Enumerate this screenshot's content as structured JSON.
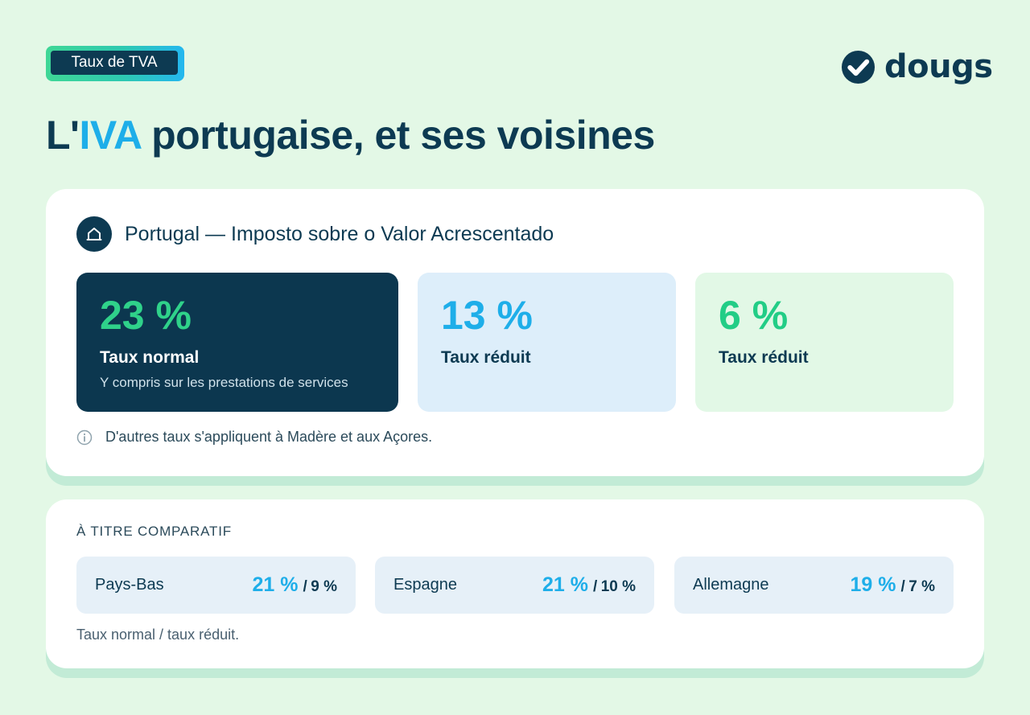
{
  "header": {
    "tag_label": "Taux de TVA",
    "brand_name": "dougs",
    "title": {
      "prefix": "L'",
      "accent": "IVA",
      "suffix": " portugaise, et ses voisines"
    }
  },
  "main_card": {
    "country_icon": "house-icon",
    "country_title": "Portugal — Imposto sobre o Valor Acrescentado",
    "rates": [
      {
        "value": "23 %",
        "label": "Taux normal",
        "sub": "Y compris sur les prestations de services"
      },
      {
        "value": "13 %",
        "label": "Taux réduit"
      },
      {
        "value": "6 %",
        "label": "Taux réduit"
      }
    ],
    "note_icon": "info-icon",
    "note": "D'autres taux s'appliquent à Madère et aux Açores."
  },
  "compare_card": {
    "section_title": "À TITRE COMPARATIF",
    "countries": [
      {
        "name": "Pays-Bas",
        "normal": "21 %",
        "reduced": "9 %"
      },
      {
        "name": "Espagne",
        "normal": "21 %",
        "reduced": "10 %"
      },
      {
        "name": "Allemagne",
        "normal": "19 %",
        "reduced": "7 %"
      }
    ],
    "separator": "/",
    "footnote": "Taux normal / taux réduit."
  },
  "colors": {
    "background": "#e3f8e6",
    "navy": "#0d3a52",
    "blue_accent": "#1eaee9",
    "green_accent": "#2fd28a"
  }
}
